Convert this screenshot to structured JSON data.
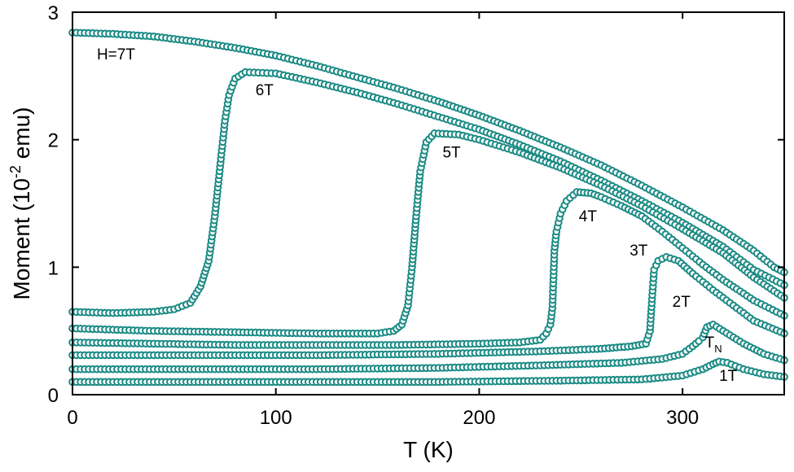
{
  "chart_data": {
    "type": "scatter",
    "title": "",
    "xlabel": "T (K)",
    "ylabel_main": "Moment (10",
    "ylabel_sup": "-2",
    "ylabel_unit": " emu)",
    "xlim": [
      0,
      350
    ],
    "ylim": [
      0,
      3
    ],
    "x_ticks": [
      0,
      100,
      200,
      300
    ],
    "y_ticks": [
      0,
      1,
      2,
      3
    ],
    "grid": false,
    "marker": "open-circle",
    "series_color": "#1a8a84",
    "annotation_tn": "T",
    "annotation_tn_sub": "N",
    "series": [
      {
        "name": "H=7T",
        "points": [
          [
            0,
            2.84
          ],
          [
            20,
            2.83
          ],
          [
            40,
            2.81
          ],
          [
            60,
            2.77
          ],
          [
            80,
            2.72
          ],
          [
            100,
            2.66
          ],
          [
            120,
            2.58
          ],
          [
            140,
            2.49
          ],
          [
            160,
            2.4
          ],
          [
            180,
            2.3
          ],
          [
            200,
            2.19
          ],
          [
            220,
            2.07
          ],
          [
            240,
            1.94
          ],
          [
            260,
            1.8
          ],
          [
            280,
            1.64
          ],
          [
            300,
            1.47
          ],
          [
            320,
            1.29
          ],
          [
            335,
            1.13
          ],
          [
            345,
            1.0
          ],
          [
            350,
            0.96
          ]
        ]
      },
      {
        "name": "6T",
        "points": [
          [
            0,
            0.65
          ],
          [
            20,
            0.64
          ],
          [
            40,
            0.65
          ],
          [
            50,
            0.67
          ],
          [
            58,
            0.72
          ],
          [
            63,
            0.85
          ],
          [
            67,
            1.05
          ],
          [
            70,
            1.4
          ],
          [
            73,
            1.85
          ],
          [
            75,
            2.15
          ],
          [
            77,
            2.35
          ],
          [
            80,
            2.48
          ],
          [
            85,
            2.53
          ],
          [
            100,
            2.52
          ],
          [
            120,
            2.45
          ],
          [
            140,
            2.37
          ],
          [
            160,
            2.28
          ],
          [
            180,
            2.18
          ],
          [
            200,
            2.08
          ],
          [
            220,
            1.96
          ],
          [
            240,
            1.83
          ],
          [
            260,
            1.68
          ],
          [
            280,
            1.52
          ],
          [
            300,
            1.35
          ],
          [
            320,
            1.16
          ],
          [
            335,
            0.98
          ],
          [
            350,
            0.86
          ]
        ]
      },
      {
        "name": "5T",
        "points": [
          [
            0,
            0.52
          ],
          [
            40,
            0.5
          ],
          [
            80,
            0.49
          ],
          [
            120,
            0.48
          ],
          [
            150,
            0.48
          ],
          [
            158,
            0.5
          ],
          [
            162,
            0.55
          ],
          [
            165,
            0.7
          ],
          [
            167,
            1.0
          ],
          [
            169,
            1.4
          ],
          [
            171,
            1.75
          ],
          [
            174,
            1.98
          ],
          [
            178,
            2.05
          ],
          [
            190,
            2.04
          ],
          [
            200,
            2.0
          ],
          [
            220,
            1.9
          ],
          [
            240,
            1.78
          ],
          [
            260,
            1.64
          ],
          [
            280,
            1.48
          ],
          [
            300,
            1.3
          ],
          [
            320,
            1.11
          ],
          [
            335,
            0.92
          ],
          [
            350,
            0.76
          ]
        ]
      },
      {
        "name": "4T",
        "points": [
          [
            0,
            0.41
          ],
          [
            40,
            0.4
          ],
          [
            80,
            0.39
          ],
          [
            120,
            0.39
          ],
          [
            160,
            0.39
          ],
          [
            200,
            0.4
          ],
          [
            220,
            0.41
          ],
          [
            230,
            0.43
          ],
          [
            233,
            0.48
          ],
          [
            235,
            0.55
          ],
          [
            236,
            0.68
          ],
          [
            237,
            1.13
          ],
          [
            238,
            1.28
          ],
          [
            240,
            1.42
          ],
          [
            243,
            1.52
          ],
          [
            248,
            1.59
          ],
          [
            255,
            1.58
          ],
          [
            260,
            1.55
          ],
          [
            270,
            1.48
          ],
          [
            280,
            1.4
          ],
          [
            290,
            1.28
          ],
          [
            300,
            1.15
          ],
          [
            310,
            1.02
          ],
          [
            320,
            0.9
          ],
          [
            335,
            0.74
          ],
          [
            350,
            0.62
          ]
        ]
      },
      {
        "name": "3T",
        "points": [
          [
            0,
            0.31
          ],
          [
            60,
            0.31
          ],
          [
            120,
            0.31
          ],
          [
            180,
            0.32
          ],
          [
            230,
            0.34
          ],
          [
            260,
            0.36
          ],
          [
            275,
            0.38
          ],
          [
            282,
            0.4
          ],
          [
            284,
            0.5
          ],
          [
            285,
            0.75
          ],
          [
            286,
            0.98
          ],
          [
            288,
            1.05
          ],
          [
            292,
            1.08
          ],
          [
            298,
            1.05
          ],
          [
            305,
            0.95
          ],
          [
            315,
            0.82
          ],
          [
            325,
            0.7
          ],
          [
            335,
            0.58
          ],
          [
            350,
            0.48
          ]
        ]
      },
      {
        "name": "2T",
        "points": [
          [
            0,
            0.2
          ],
          [
            60,
            0.2
          ],
          [
            120,
            0.2
          ],
          [
            180,
            0.21
          ],
          [
            230,
            0.23
          ],
          [
            270,
            0.25
          ],
          [
            290,
            0.28
          ],
          [
            300,
            0.32
          ],
          [
            305,
            0.38
          ],
          [
            308,
            0.42
          ],
          [
            310,
            0.45
          ],
          [
            312,
            0.53
          ],
          [
            315,
            0.55
          ],
          [
            320,
            0.5
          ],
          [
            330,
            0.4
          ],
          [
            340,
            0.32
          ],
          [
            350,
            0.27
          ]
        ]
      },
      {
        "name": "1T",
        "points": [
          [
            0,
            0.1
          ],
          [
            60,
            0.1
          ],
          [
            120,
            0.1
          ],
          [
            180,
            0.1
          ],
          [
            240,
            0.11
          ],
          [
            280,
            0.12
          ],
          [
            300,
            0.15
          ],
          [
            310,
            0.2
          ],
          [
            315,
            0.24
          ],
          [
            318,
            0.26
          ],
          [
            322,
            0.25
          ],
          [
            330,
            0.2
          ],
          [
            340,
            0.16
          ],
          [
            350,
            0.14
          ]
        ]
      }
    ],
    "labels": [
      {
        "text": "H=7T",
        "x": 12,
        "y": 2.63
      },
      {
        "text": "6T",
        "x": 90,
        "y": 2.35
      },
      {
        "text": "5T",
        "x": 182,
        "y": 1.86
      },
      {
        "text": "4T",
        "x": 249,
        "y": 1.36
      },
      {
        "text": "3T",
        "x": 274,
        "y": 1.09
      },
      {
        "text": "2T",
        "x": 295,
        "y": 0.69
      },
      {
        "text": "1T",
        "x": 318,
        "y": 0.11
      }
    ],
    "tn_label": {
      "x": 311,
      "y": 0.37
    }
  }
}
